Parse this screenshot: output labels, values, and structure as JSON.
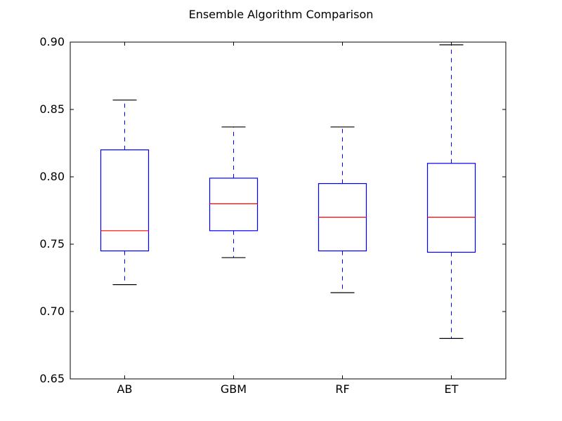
{
  "chart_data": {
    "type": "box",
    "title": "Ensemble Algorithm Comparison",
    "xlabel": "",
    "ylabel": "",
    "ylim": [
      0.65,
      0.9
    ],
    "yticks": [
      "0.65",
      "0.70",
      "0.75",
      "0.80",
      "0.85",
      "0.90"
    ],
    "categories": [
      "AB",
      "GBM",
      "RF",
      "ET"
    ],
    "boxes": [
      {
        "category": "AB",
        "whisker_low": 0.72,
        "q1": 0.745,
        "median": 0.76,
        "q3": 0.82,
        "whisker_high": 0.857
      },
      {
        "category": "GBM",
        "whisker_low": 0.74,
        "q1": 0.76,
        "median": 0.78,
        "q3": 0.799,
        "whisker_high": 0.837
      },
      {
        "category": "RF",
        "whisker_low": 0.714,
        "q1": 0.745,
        "median": 0.77,
        "q3": 0.795,
        "whisker_high": 0.837
      },
      {
        "category": "ET",
        "whisker_low": 0.68,
        "q1": 0.744,
        "median": 0.77,
        "q3": 0.81,
        "whisker_high": 0.898
      }
    ],
    "grid": false,
    "colors": {
      "box": "#0000ff",
      "median": "#ff0000",
      "whisker": "#0000ff",
      "cap": "#000000",
      "axes": "#000000"
    }
  }
}
